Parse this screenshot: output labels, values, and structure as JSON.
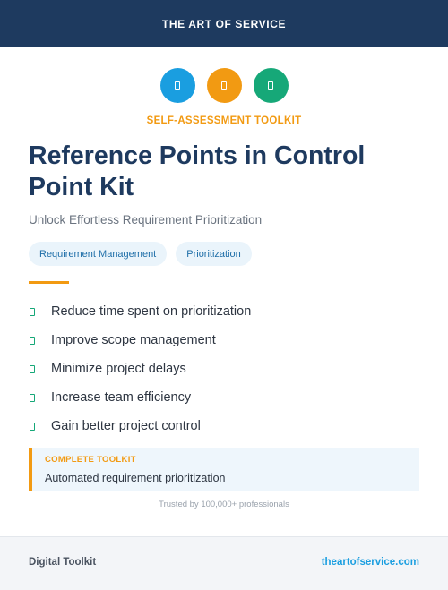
{
  "header": {
    "brand": "THE ART OF SERVICE"
  },
  "icons": [
    {
      "name": "document-icon",
      "color": "#1a9ee0"
    },
    {
      "name": "document-icon",
      "color": "#f29a12"
    },
    {
      "name": "document-icon",
      "color": "#16a878"
    }
  ],
  "kicker": "SELF-ASSESSMENT TOOLKIT",
  "title": "Reference Points in Control Point Kit",
  "subtitle": "Unlock Effortless Requirement Prioritization",
  "tags": [
    "Requirement Management",
    "Prioritization"
  ],
  "benefits": [
    "Reduce time spent on prioritization",
    "Improve scope management",
    "Minimize project delays",
    "Increase team efficiency",
    "Gain better project control"
  ],
  "callout": {
    "label": "COMPLETE TOOLKIT",
    "text": "Automated requirement prioritization"
  },
  "trusted": "Trusted by 100,000+ professionals",
  "footer": {
    "left": "Digital Toolkit",
    "right": "theartofservice.com"
  },
  "colors": {
    "navy": "#1e3a5f",
    "blue": "#1a9ee0",
    "orange": "#f29a12",
    "green": "#16a878"
  }
}
